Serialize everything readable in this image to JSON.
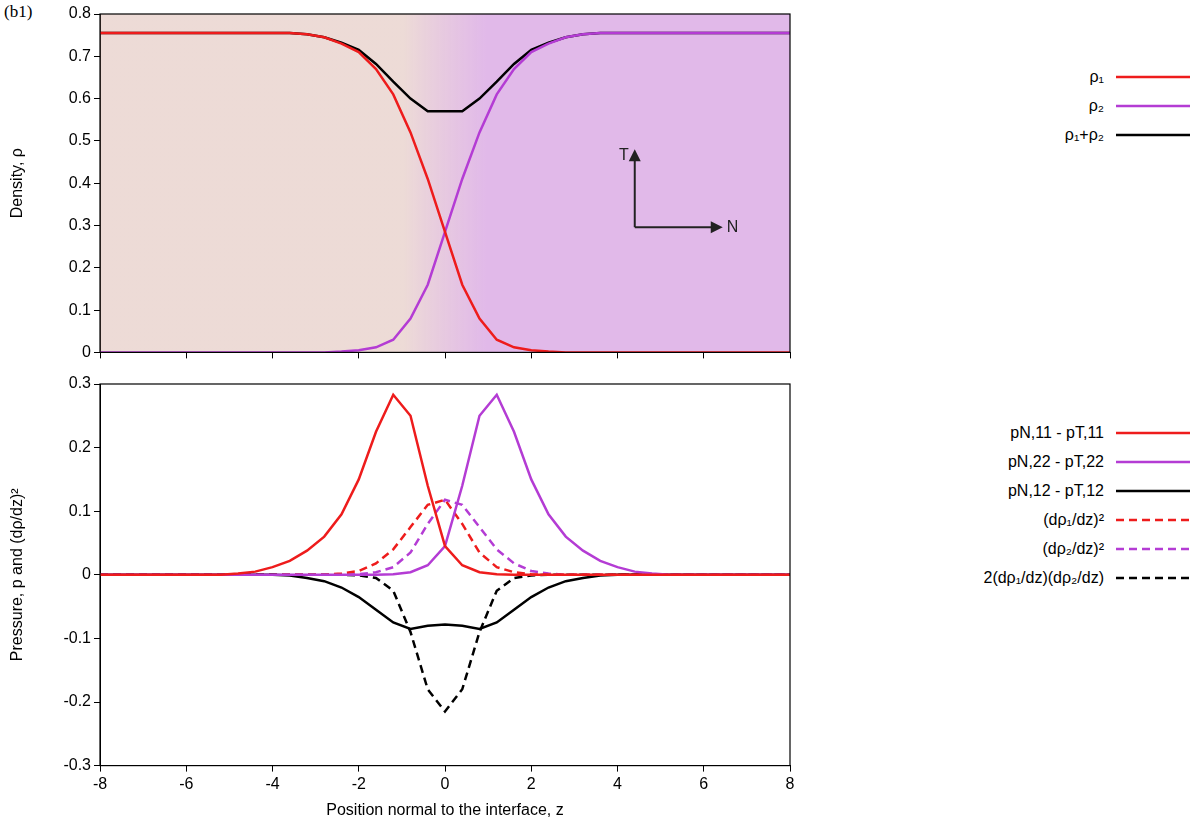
{
  "panel_label": "(b1)",
  "chart_data": [
    {
      "type": "line",
      "y_label": "Density, ρ",
      "annotations": [
        "T",
        "N"
      ],
      "legend": "right",
      "grid": false,
      "tick_labels": "y",
      "xlim": [
        -8,
        8
      ],
      "xticks": [
        -8,
        -6,
        -4,
        -2,
        0,
        2,
        4,
        6,
        8
      ],
      "ylim": [
        0,
        0.8
      ],
      "yticks": [
        0,
        0.1,
        0.2,
        0.3,
        0.4,
        0.5,
        0.6,
        0.7,
        0.8
      ],
      "x": [
        -8,
        -7.6,
        -7.2,
        -6.8,
        -6.4,
        -6,
        -5.6,
        -5.2,
        -4.8,
        -4.4,
        -4,
        -3.6,
        -3.2,
        -2.8,
        -2.4,
        -2,
        -1.6,
        -1.2,
        -0.8,
        -0.4,
        0,
        0.4,
        0.8,
        1.2,
        1.6,
        2,
        2.4,
        2.8,
        3.2,
        3.6,
        4,
        4.4,
        4.8,
        5.2,
        5.6,
        6,
        6.4,
        6.8,
        7.2,
        7.6,
        8
      ],
      "series": [
        {
          "name": "ρ₁",
          "color": "#ee1c1c",
          "line_style": "solid",
          "values": [
            0.755,
            0.755,
            0.755,
            0.755,
            0.755,
            0.755,
            0.755,
            0.755,
            0.755,
            0.755,
            0.755,
            0.755,
            0.752,
            0.745,
            0.73,
            0.71,
            0.67,
            0.61,
            0.52,
            0.41,
            0.285,
            0.16,
            0.08,
            0.03,
            0.012,
            0.005,
            0.002,
            0,
            0,
            0,
            0,
            0,
            0,
            0,
            0,
            0,
            0,
            0,
            0,
            0,
            0
          ]
        },
        {
          "name": "ρ₂",
          "color": "#b43cd4",
          "line_style": "solid",
          "values": [
            0,
            0,
            0,
            0,
            0,
            0,
            0,
            0,
            0,
            0,
            0,
            0,
            0,
            0,
            0.002,
            0.005,
            0.012,
            0.03,
            0.08,
            0.16,
            0.285,
            0.41,
            0.52,
            0.61,
            0.67,
            0.71,
            0.73,
            0.745,
            0.752,
            0.755,
            0.755,
            0.755,
            0.755,
            0.755,
            0.755,
            0.755,
            0.755,
            0.755,
            0.755,
            0.755,
            0.755
          ]
        },
        {
          "name": "ρ₁+ρ₂",
          "color": "#000000",
          "line_style": "solid",
          "values": [
            0.755,
            0.755,
            0.755,
            0.755,
            0.755,
            0.755,
            0.755,
            0.755,
            0.755,
            0.755,
            0.755,
            0.755,
            0.752,
            0.745,
            0.732,
            0.715,
            0.682,
            0.64,
            0.6,
            0.57,
            0.57,
            0.57,
            0.6,
            0.64,
            0.682,
            0.715,
            0.732,
            0.745,
            0.752,
            0.755,
            0.755,
            0.755,
            0.755,
            0.755,
            0.755,
            0.755,
            0.755,
            0.755,
            0.755,
            0.755,
            0.755
          ]
        }
      ]
    },
    {
      "type": "line",
      "x_label": "Position normal to the interface, z",
      "y_label": "Pressure, p and (dρ/dz)²",
      "legend": "right",
      "grid": false,
      "xlim": [
        -8,
        8
      ],
      "xticks": [
        -8,
        -6,
        -4,
        -2,
        0,
        2,
        4,
        6,
        8
      ],
      "ylim": [
        -0.3,
        0.3
      ],
      "yticks": [
        -0.3,
        -0.2,
        -0.1,
        0,
        0.1,
        0.2,
        0.3
      ],
      "x": [
        -8,
        -7.6,
        -7.2,
        -6.8,
        -6.4,
        -6,
        -5.6,
        -5.2,
        -4.8,
        -4.4,
        -4,
        -3.6,
        -3.2,
        -2.8,
        -2.4,
        -2,
        -1.6,
        -1.2,
        -0.8,
        -0.4,
        0,
        0.4,
        0.8,
        1.2,
        1.6,
        2,
        2.4,
        2.8,
        3.2,
        3.6,
        4,
        4.4,
        4.8,
        5.2,
        5.6,
        6,
        6.4,
        6.8,
        7.2,
        7.6,
        8
      ],
      "series": [
        {
          "name": "pN,11 - pT,11",
          "color": "#ee1c1c",
          "line_style": "solid",
          "values": [
            0,
            0,
            0,
            0,
            0,
            0,
            0,
            0,
            0.002,
            0.005,
            0.012,
            0.022,
            0.038,
            0.06,
            0.095,
            0.15,
            0.225,
            0.283,
            0.25,
            0.14,
            0.045,
            0.015,
            0.004,
            0.001,
            0,
            0,
            0,
            0,
            0,
            0,
            0,
            0,
            0,
            0,
            0,
            0,
            0,
            0,
            0,
            0,
            0
          ]
        },
        {
          "name": "pN,22 - pT,22",
          "color": "#b43cd4",
          "line_style": "solid",
          "values": [
            0,
            0,
            0,
            0,
            0,
            0,
            0,
            0,
            0,
            0,
            0,
            0,
            0,
            0,
            0,
            0,
            0,
            0.001,
            0.004,
            0.015,
            0.045,
            0.14,
            0.25,
            0.283,
            0.225,
            0.15,
            0.095,
            0.06,
            0.038,
            0.022,
            0.012,
            0.005,
            0.002,
            0,
            0,
            0,
            0,
            0,
            0,
            0,
            0
          ]
        },
        {
          "name": "pN,12 - pT,12",
          "color": "#000000",
          "line_style": "solid",
          "values": [
            0,
            0,
            0,
            0,
            0,
            0,
            0,
            0,
            0,
            0,
            0,
            -0.001,
            -0.005,
            -0.01,
            -0.02,
            -0.035,
            -0.055,
            -0.075,
            -0.085,
            -0.08,
            -0.078,
            -0.08,
            -0.085,
            -0.075,
            -0.055,
            -0.035,
            -0.02,
            -0.01,
            -0.005,
            -0.001,
            0,
            0,
            0,
            0,
            0,
            0,
            0,
            0,
            0,
            0,
            0
          ]
        },
        {
          "name": "(dρ₁/dz)²",
          "color": "#ee1c1c",
          "line_style": "dashed",
          "values": [
            0,
            0,
            0,
            0,
            0,
            0,
            0,
            0,
            0,
            0,
            0,
            0,
            0,
            0,
            0.002,
            0.006,
            0.018,
            0.04,
            0.075,
            0.11,
            0.118,
            0.08,
            0.035,
            0.012,
            0.004,
            0.001,
            0,
            0,
            0,
            0,
            0,
            0,
            0,
            0,
            0,
            0,
            0,
            0,
            0,
            0,
            0
          ]
        },
        {
          "name": "(dρ₂/dz)²",
          "color": "#b43cd4",
          "line_style": "dashed",
          "values": [
            0,
            0,
            0,
            0,
            0,
            0,
            0,
            0,
            0,
            0,
            0,
            0,
            0,
            0,
            0,
            0.001,
            0.004,
            0.012,
            0.035,
            0.08,
            0.118,
            0.11,
            0.075,
            0.04,
            0.018,
            0.006,
            0.002,
            0,
            0,
            0,
            0,
            0,
            0,
            0,
            0,
            0,
            0,
            0,
            0,
            0,
            0
          ]
        },
        {
          "name": "2(dρ₁/dz)(dρ₂/dz)",
          "color": "#000000",
          "line_style": "dashed",
          "values": [
            0,
            0,
            0,
            0,
            0,
            0,
            0,
            0,
            0,
            0,
            0,
            0,
            0,
            0,
            0,
            -0.001,
            -0.005,
            -0.025,
            -0.09,
            -0.18,
            -0.215,
            -0.18,
            -0.09,
            -0.025,
            -0.005,
            -0.001,
            0,
            0,
            0,
            0,
            0,
            0,
            0,
            0,
            0,
            0,
            0,
            0,
            0,
            0,
            0
          ]
        }
      ]
    }
  ]
}
